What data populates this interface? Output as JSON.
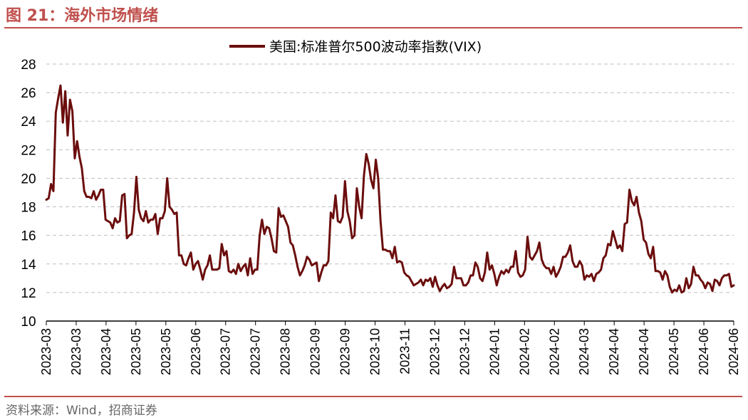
{
  "figure": {
    "title": "图 21：海外市场情绪",
    "source": "资料来源：Wind，招商证券"
  },
  "colors": {
    "accent": "#c0504d",
    "series": "#6b0d0d",
    "grid": "#bfbfbf"
  },
  "chart_data": {
    "type": "line",
    "title": "",
    "xlabel": "",
    "ylabel": "",
    "ylim": [
      10,
      28
    ],
    "yticks": [
      10,
      12,
      14,
      16,
      18,
      20,
      22,
      24,
      26,
      28
    ],
    "xticks": [
      "2023-03",
      "2023-03",
      "2023-04",
      "2023-05",
      "2023-05",
      "2023-06",
      "2023-07",
      "2023-07",
      "2023-08",
      "2023-09",
      "2023-09",
      "2023-10",
      "2023-11",
      "2023-12",
      "2023-12",
      "2024-01",
      "2024-02",
      "2024-02",
      "2024-03",
      "2024-04",
      "2024-04",
      "2024-05",
      "2024-06",
      "2024-06"
    ],
    "grid": true,
    "legend_position": "top-center",
    "series": [
      {
        "name": "美国:标准普尔500波动率指数(VIX)",
        "values": [
          18.5,
          18.6,
          19.6,
          19.1,
          24.6,
          25.6,
          26.5,
          23.9,
          26.1,
          23.0,
          25.5,
          24.7,
          21.4,
          22.6,
          21.5,
          20.7,
          19.1,
          18.7,
          18.7,
          18.6,
          19.1,
          18.5,
          18.8,
          19.2,
          19.2,
          17.1,
          17.0,
          16.9,
          16.5,
          17.2,
          16.9,
          17.0,
          18.8,
          18.9,
          15.8,
          16.0,
          16.1,
          17.6,
          20.1,
          17.8,
          17.2,
          17.0,
          17.7,
          16.9,
          17.1,
          17.1,
          17.5,
          16.1,
          17.2,
          17.2,
          17.7,
          20.0,
          18.0,
          17.8,
          17.5,
          17.6,
          14.6,
          14.6,
          14.0,
          13.9,
          14.4,
          14.8,
          13.6,
          14.0,
          14.2,
          13.6,
          12.9,
          13.6,
          13.9,
          14.6,
          13.6,
          13.6,
          13.6,
          13.7,
          15.4,
          14.6,
          14.9,
          13.5,
          13.4,
          13.6,
          13.3,
          14.0,
          13.5,
          13.8,
          14.0,
          13.2,
          14.4,
          13.3,
          13.6,
          13.6,
          16.0,
          17.1,
          16.1,
          16.6,
          16.5,
          15.8,
          14.9,
          14.8,
          17.9,
          17.3,
          17.4,
          17.0,
          16.6,
          15.5,
          15.3,
          14.6,
          13.8,
          13.2,
          13.5,
          13.9,
          14.5,
          14.3,
          13.9,
          14.0,
          14.1,
          12.8,
          13.4,
          13.9,
          13.9,
          14.2,
          17.6,
          17.2,
          18.8,
          17.0,
          16.9,
          17.3,
          19.8,
          17.7,
          17.0,
          15.8,
          16.0,
          19.3,
          18.0,
          17.2,
          20.2,
          21.7,
          21.0,
          19.9,
          19.3,
          21.3,
          20.0,
          17.0,
          15.0,
          15.0,
          14.9,
          14.9,
          14.4,
          15.2,
          14.1,
          14.2,
          14.1,
          13.4,
          13.2,
          13.1,
          12.8,
          12.5,
          12.6,
          12.7,
          12.9,
          12.5,
          12.9,
          12.8,
          13.0,
          12.4,
          13.1,
          12.5,
          12.1,
          12.4,
          12.6,
          12.3,
          12.4,
          12.6,
          13.8,
          13.0,
          13.0,
          13.0,
          12.5,
          12.5,
          12.7,
          13.2,
          13.2,
          14.1,
          13.8,
          13.0,
          12.8,
          13.4,
          14.8,
          13.6,
          13.9,
          13.3,
          12.5,
          13.1,
          13.5,
          13.3,
          13.6,
          13.4,
          13.8,
          13.8,
          14.9,
          13.4,
          13.1,
          13.2,
          13.6,
          15.9,
          14.5,
          14.3,
          14.6,
          14.9,
          15.5,
          14.3,
          13.9,
          13.7,
          13.7,
          13.3,
          13.8,
          13.1,
          13.4,
          13.8,
          14.5,
          14.5,
          14.8,
          15.3,
          14.2,
          13.8,
          13.8,
          14.2,
          13.9,
          12.9,
          13.2,
          13.1,
          13.3,
          12.8,
          13.3,
          13.4,
          13.6,
          14.4,
          14.6,
          15.4,
          15.3,
          16.3,
          15.7,
          15.1,
          15.3,
          14.9,
          16.8,
          16.9,
          19.2,
          18.4,
          18.1,
          18.7,
          17.6,
          17.0,
          15.7,
          15.5,
          14.7,
          14.4,
          15.2,
          13.5,
          13.5,
          13.4,
          12.9,
          13.5,
          13.2,
          12.4,
          12.0,
          12.2,
          12.1,
          12.5,
          12.0,
          12.1,
          13.0,
          12.3,
          12.6,
          13.8,
          13.2,
          13.2,
          12.9,
          12.7,
          12.3,
          12.7,
          12.6,
          12.1,
          12.9,
          12.8,
          12.5,
          13.0,
          13.2,
          13.2,
          13.3,
          12.4,
          12.5
        ]
      }
    ]
  }
}
